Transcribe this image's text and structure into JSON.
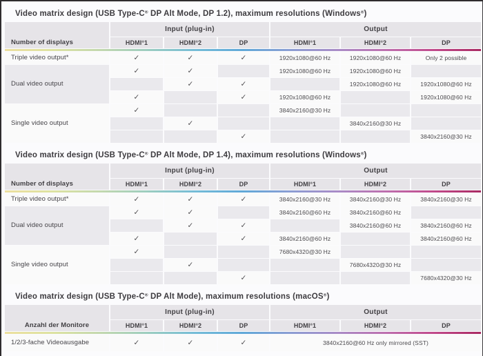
{
  "page": {
    "check_glyph": "✓"
  },
  "colors": {
    "border_dark": "#2e2c2e",
    "header_cell_bg": "#e6e4e8",
    "empty_cell_bg": "#eae9ed",
    "filled_cell_bg": "#fafafa",
    "text": "#48464a",
    "rainbow_gradient": [
      "#ecdf9e",
      "#dde2a1",
      "#c3d8ae",
      "#9ccdbf",
      "#74bcd7",
      "#60a8d8",
      "#8b9dd3",
      "#a98bc6",
      "#bd6fae",
      "#c14a8b",
      "#a92a62"
    ]
  },
  "tables": [
    {
      "title": "Video matrix design (USB Type-C® DP Alt Mode, DP 1.2), maximum resolutions (Windows®)",
      "header": {
        "row_label": "Number of displays",
        "input_group": "Input (plug-in)",
        "output_group": "Output",
        "columns": [
          "HDMI® 1",
          "HDMI® 2",
          "DP"
        ]
      },
      "groups": [
        {
          "label": "Triple video output*",
          "rows": [
            {
              "inputs": [
                true,
                true,
                true
              ],
              "outputs": [
                "1920x1080@60 Hz",
                "1920x1080@60 Hz",
                "Only 2 possible"
              ]
            }
          ]
        },
        {
          "label": "Dual video output",
          "rows": [
            {
              "inputs": [
                true,
                true,
                false
              ],
              "outputs": [
                "1920x1080@60 Hz",
                "1920x1080@60 Hz",
                ""
              ]
            },
            {
              "inputs": [
                false,
                true,
                true
              ],
              "outputs": [
                "",
                "1920x1080@60 Hz",
                "1920x1080@60 Hz"
              ]
            },
            {
              "inputs": [
                true,
                false,
                true
              ],
              "outputs": [
                "1920x1080@60 Hz",
                "",
                "1920x1080@60 Hz"
              ]
            }
          ]
        },
        {
          "label": "Single video output",
          "rows": [
            {
              "inputs": [
                true,
                false,
                false
              ],
              "outputs": [
                "3840x2160@30 Hz",
                "",
                ""
              ]
            },
            {
              "inputs": [
                false,
                true,
                false
              ],
              "outputs": [
                "",
                "3840x2160@30 Hz",
                ""
              ]
            },
            {
              "inputs": [
                false,
                false,
                true
              ],
              "outputs": [
                "",
                "",
                "3840x2160@30 Hz"
              ]
            }
          ]
        }
      ]
    },
    {
      "title": "Video matrix design (USB Type-C® DP Alt Mode, DP 1.4), maximum resolutions (Windows®)",
      "header": {
        "row_label": "Number of displays",
        "input_group": "Input (plug-in)",
        "output_group": "Output",
        "columns": [
          "HDMI® 1",
          "HDMI® 2",
          "DP"
        ]
      },
      "groups": [
        {
          "label": "Triple video output*",
          "rows": [
            {
              "inputs": [
                true,
                true,
                true
              ],
              "outputs": [
                "3840x2160@30 Hz",
                "3840x2160@30 Hz",
                "3840x2160@30 Hz"
              ]
            }
          ]
        },
        {
          "label": "Dual video output",
          "rows": [
            {
              "inputs": [
                true,
                true,
                false
              ],
              "outputs": [
                "3840x2160@60 Hz",
                "3840x2160@60 Hz",
                ""
              ]
            },
            {
              "inputs": [
                false,
                true,
                true
              ],
              "outputs": [
                "",
                "3840x2160@60 Hz",
                "3840x2160@60 Hz"
              ]
            },
            {
              "inputs": [
                true,
                false,
                true
              ],
              "outputs": [
                "3840x2160@60 Hz",
                "",
                "3840x2160@60 Hz"
              ]
            }
          ]
        },
        {
          "label": "Single video output",
          "rows": [
            {
              "inputs": [
                true,
                false,
                false
              ],
              "outputs": [
                "7680x4320@30 Hz",
                "",
                ""
              ]
            },
            {
              "inputs": [
                false,
                true,
                false
              ],
              "outputs": [
                "",
                "7680x4320@30 Hz",
                ""
              ]
            },
            {
              "inputs": [
                false,
                false,
                true
              ],
              "outputs": [
                "",
                "",
                "7680x4320@30 Hz"
              ]
            }
          ]
        }
      ]
    },
    {
      "title": "Video matrix design (USB Type-C® DP Alt Mode), maximum resolutions (macOS®)",
      "header": {
        "row_label": "Anzahl der Monitore",
        "input_group": "Input (plug-in)",
        "output_group": "Output",
        "columns": [
          "HDMI® 1",
          "HDMI® 2",
          "DP"
        ]
      },
      "groups": [
        {
          "label": "1/2/3-fache Videoausgabe",
          "rows": [
            {
              "inputs": [
                true,
                true,
                true
              ],
              "output_merged": "3840x2160@60 Hz only mirrored (SST)"
            }
          ]
        }
      ]
    }
  ]
}
